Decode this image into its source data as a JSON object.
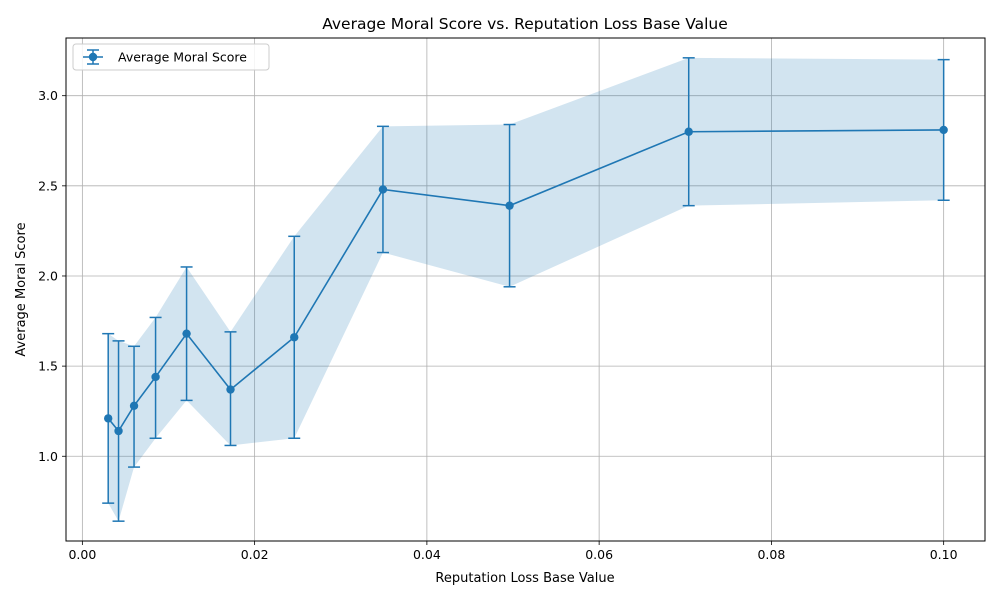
{
  "chart_data": {
    "type": "line",
    "title": "Average Moral Score vs. Reputation Loss Base Value",
    "xlabel": "Reputation Loss Base Value",
    "ylabel": "Average Moral Score",
    "xlim": [
      -0.0019,
      0.1048
    ],
    "ylim": [
      0.53,
      3.32
    ],
    "xticks": [
      0.0,
      0.02,
      0.04,
      0.06,
      0.08,
      0.1
    ],
    "xtick_labels": [
      "0.00",
      "0.02",
      "0.04",
      "0.06",
      "0.08",
      "0.10"
    ],
    "yticks": [
      1.0,
      1.5,
      2.0,
      2.5,
      3.0
    ],
    "ytick_labels": [
      "1.0",
      "1.5",
      "2.0",
      "2.5",
      "3.0"
    ],
    "grid": true,
    "legend_position": "top-left",
    "series": [
      {
        "name": "Average Moral Score",
        "color": "#1f77b4",
        "band_color": "#1f77b4",
        "x": [
          0.003,
          0.0042,
          0.006,
          0.0085,
          0.0121,
          0.0172,
          0.0246,
          0.0349,
          0.0496,
          0.0704,
          0.1
        ],
        "y": [
          1.21,
          1.14,
          1.28,
          1.44,
          1.68,
          1.37,
          1.66,
          2.48,
          2.39,
          2.8,
          2.81
        ],
        "lower": [
          0.74,
          0.64,
          0.94,
          1.1,
          1.31,
          1.06,
          1.1,
          2.13,
          1.94,
          2.39,
          2.42
        ],
        "upper": [
          1.68,
          1.64,
          1.61,
          1.77,
          2.05,
          1.69,
          2.22,
          2.83,
          2.84,
          3.21,
          3.2
        ]
      }
    ]
  }
}
